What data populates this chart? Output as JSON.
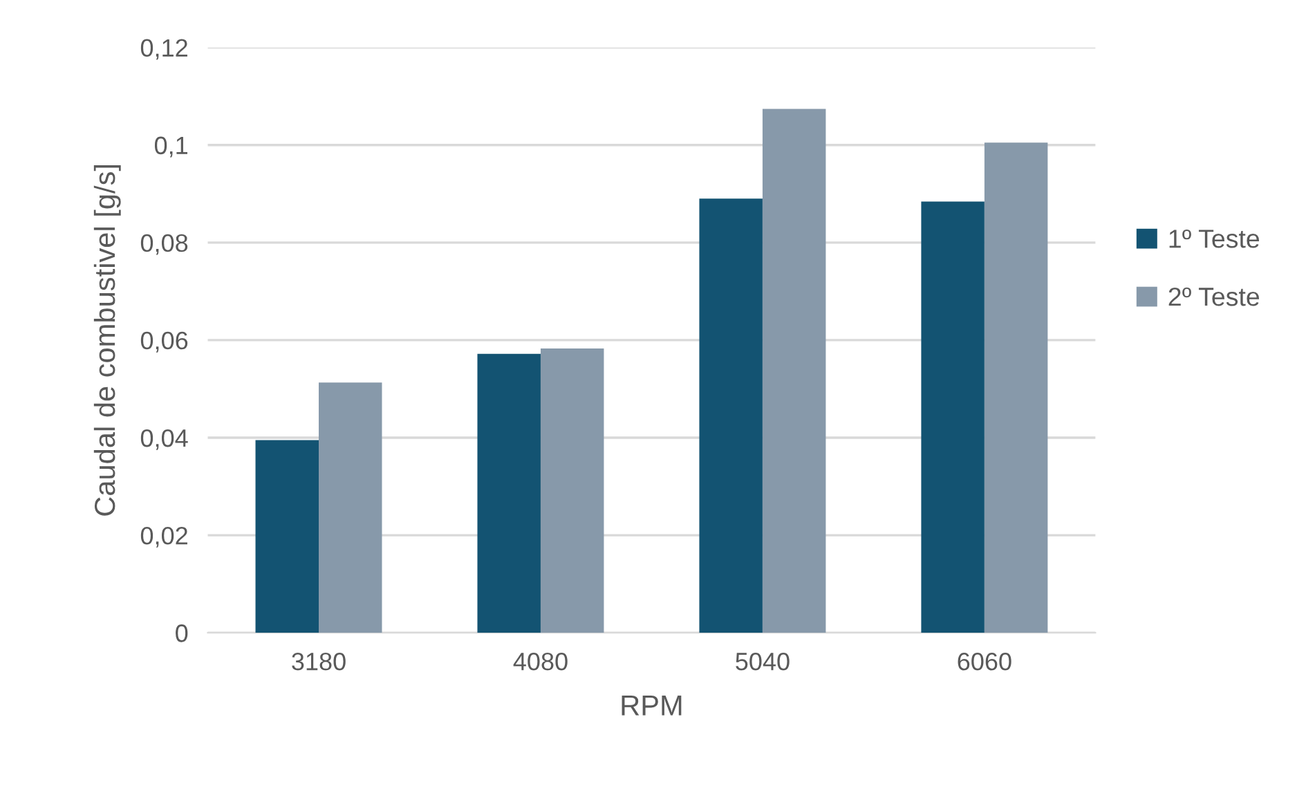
{
  "chart_data": {
    "type": "bar",
    "xlabel": "RPM",
    "ylabel": "Caudal de combustivel [g/s]",
    "categories": [
      "3180",
      "4080",
      "5040",
      "6060"
    ],
    "series": [
      {
        "name": "1º Teste",
        "color": "#135372",
        "values": [
          0.0395,
          0.0572,
          0.089,
          0.0884
        ]
      },
      {
        "name": "2º Teste",
        "color": "#8799aa",
        "values": [
          0.0513,
          0.0583,
          0.1074,
          0.1005
        ]
      }
    ],
    "ylim": [
      0,
      0.12
    ],
    "yticks": [
      {
        "value": 0,
        "label": "0"
      },
      {
        "value": 0.02,
        "label": "0,02"
      },
      {
        "value": 0.04,
        "label": "0,04"
      },
      {
        "value": 0.06,
        "label": "0,06"
      },
      {
        "value": 0.08,
        "label": "0,08"
      },
      {
        "value": 0.1,
        "label": "0,1"
      },
      {
        "value": 0.12,
        "label": "0,12"
      }
    ],
    "grid": "y",
    "legend": "right"
  }
}
